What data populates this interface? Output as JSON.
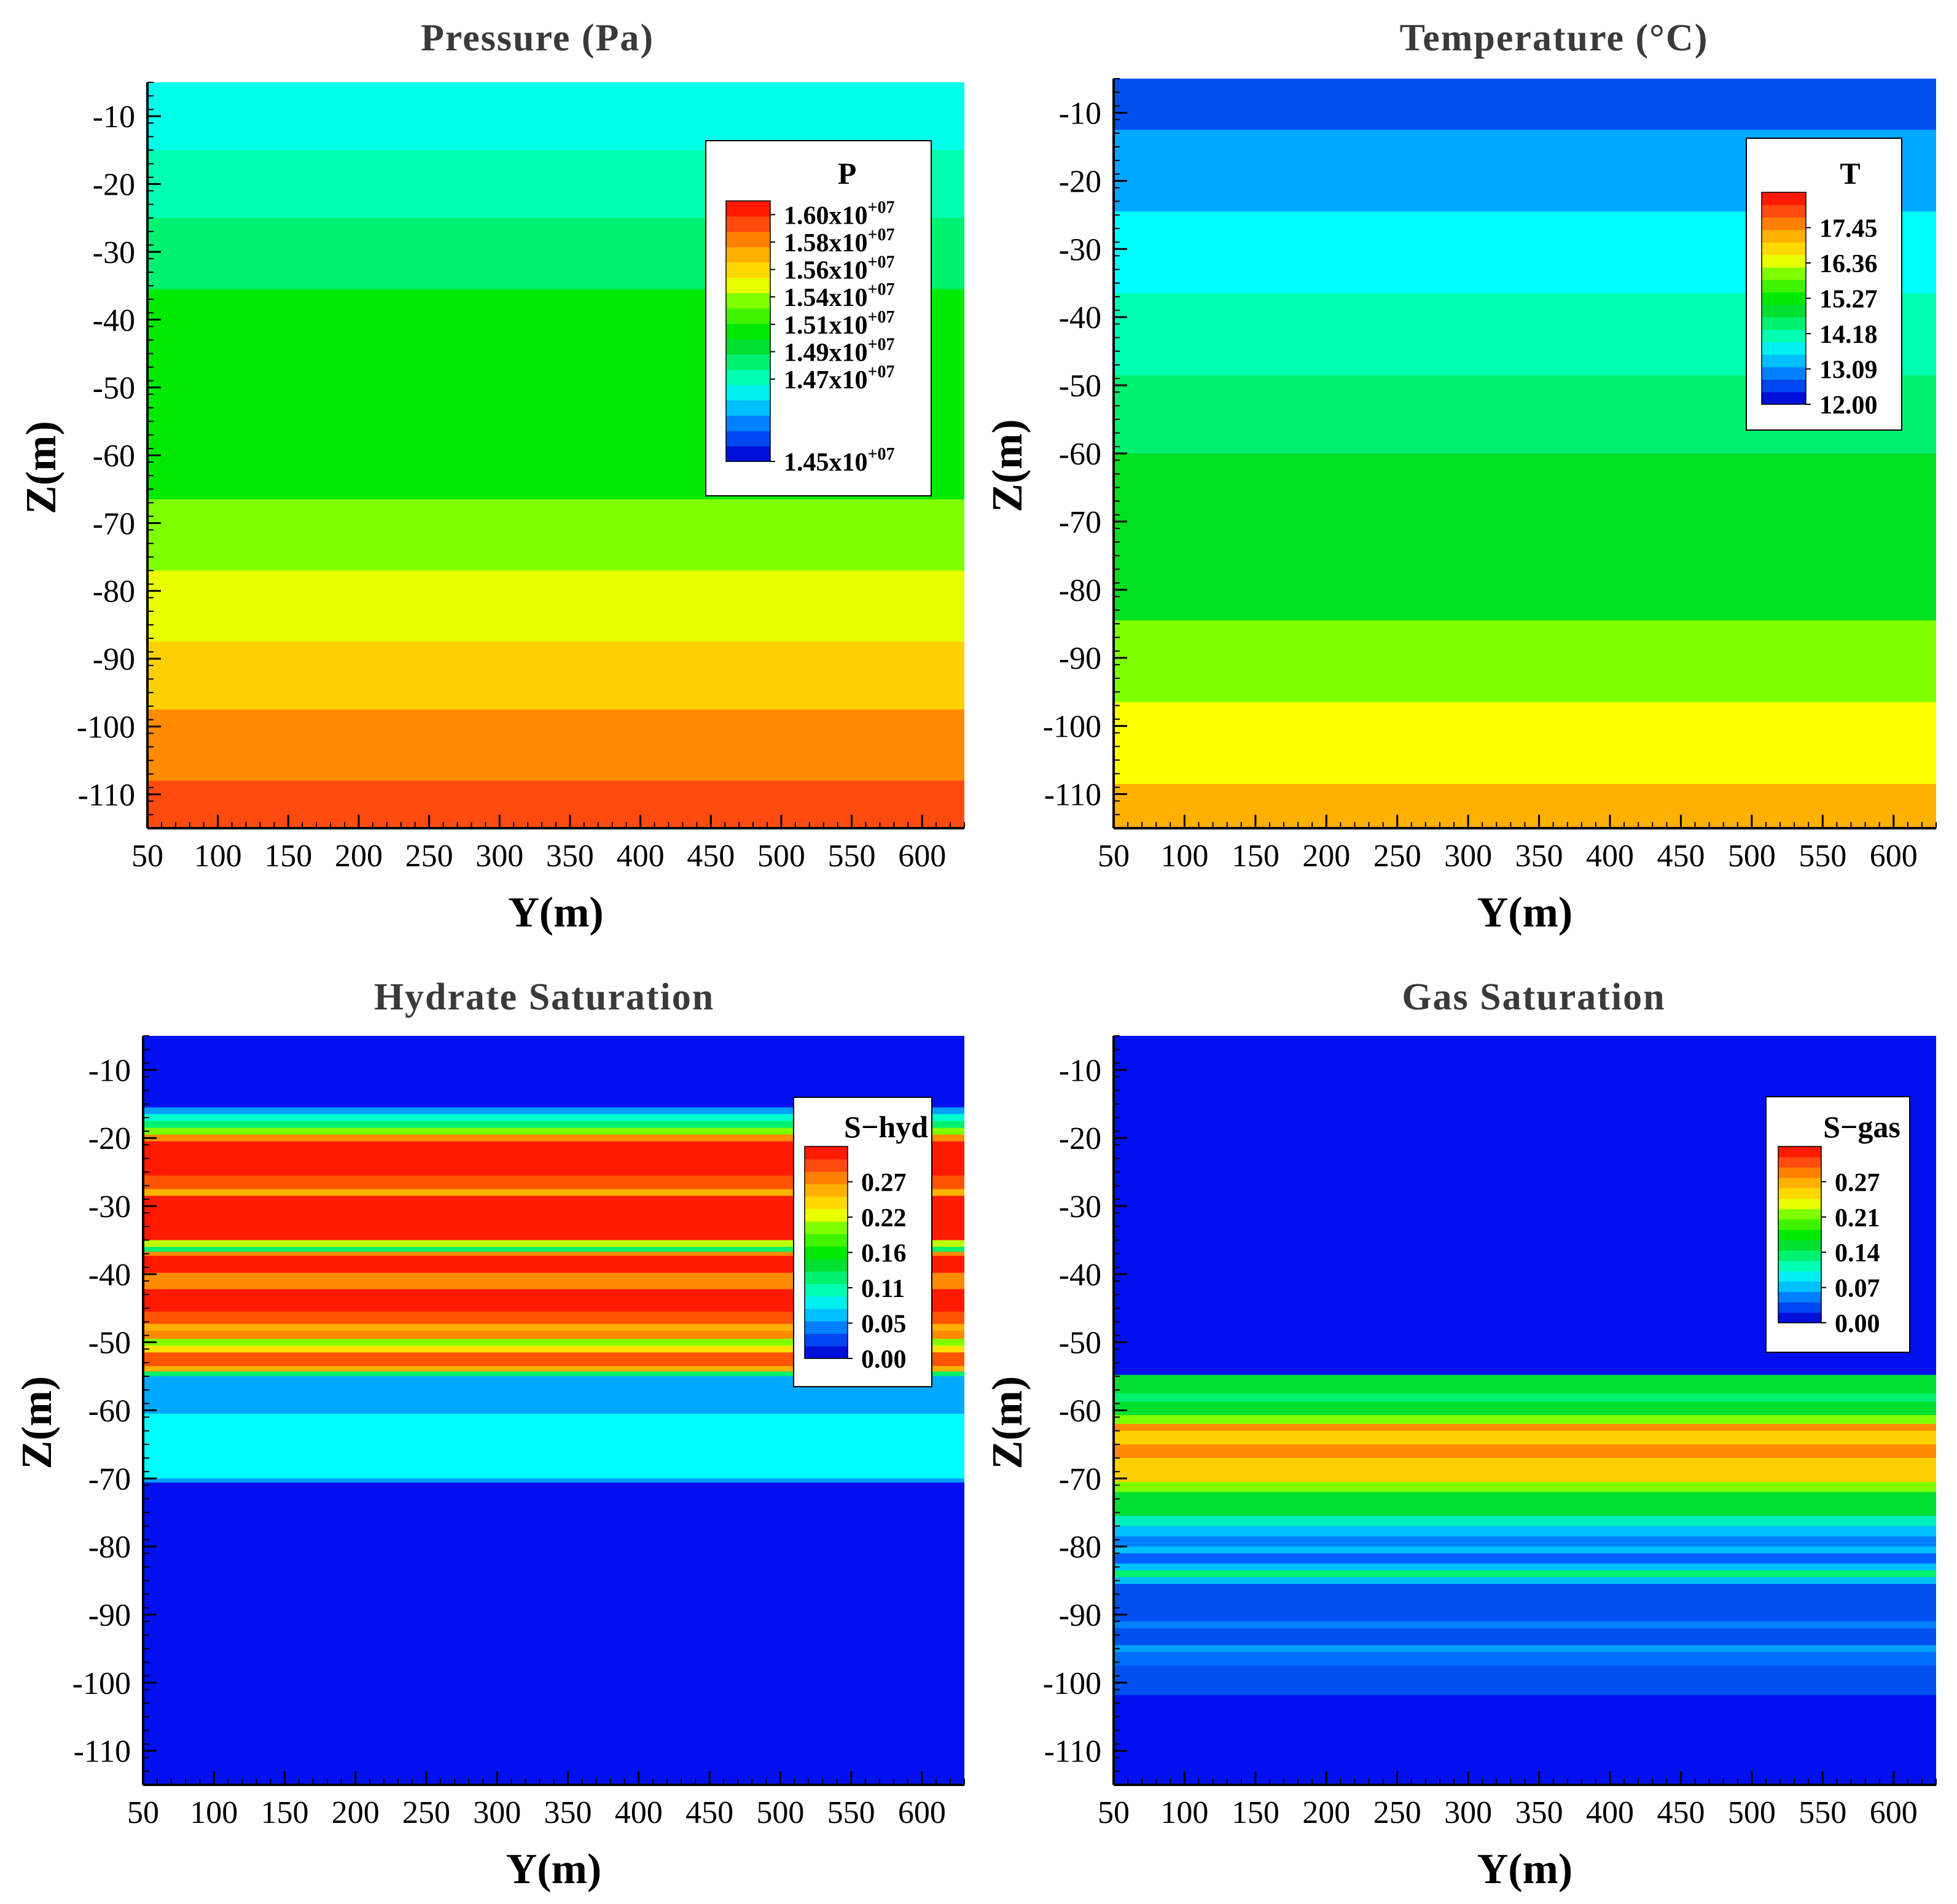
{
  "chart_data": [
    {
      "type": "heatmap",
      "title": "Pressure (Pa)",
      "xlabel": "Y(m)",
      "ylabel": "Z(m)",
      "xlim": [
        50,
        630
      ],
      "ylim": [
        -115,
        -5
      ],
      "xticks": [
        50,
        100,
        150,
        200,
        250,
        300,
        350,
        400,
        450,
        500,
        550,
        600
      ],
      "yticks": [
        -10,
        -20,
        -30,
        -40,
        -50,
        -60,
        -70,
        -80,
        -90,
        -100,
        -110
      ],
      "legend": {
        "title": "P",
        "position": "top-right",
        "colors": [
          "#0010d8",
          "#0046f0",
          "#0080ff",
          "#00c0ff",
          "#00f0f0",
          "#00ffb0",
          "#00f070",
          "#00e030",
          "#00ea00",
          "#40f400",
          "#80ff00",
          "#e8ff00",
          "#ffd800",
          "#ffb000",
          "#ff8000",
          "#ff4a10",
          "#ff1a00"
        ],
        "labels": [
          {
            "mantissa": "1.60x10",
            "exp": "+07",
            "pos": 0.9474
          },
          {
            "mantissa": "1.58x10",
            "exp": "+07",
            "pos": 0.8421
          },
          {
            "mantissa": "1.56x10",
            "exp": "+07",
            "pos": 0.7368
          },
          {
            "mantissa": "1.54x10",
            "exp": "+07",
            "pos": 0.6316
          },
          {
            "mantissa": "1.51x10",
            "exp": "+07",
            "pos": 0.5263
          },
          {
            "mantissa": "1.49x10",
            "exp": "+07",
            "pos": 0.4211
          },
          {
            "mantissa": "1.47x10",
            "exp": "+07",
            "pos": 0.3158
          },
          {
            "mantissa": "1.45x10",
            "exp": "+07",
            "pos": 0.0
          }
        ]
      },
      "bands": [
        {
          "z_top": -5,
          "z_bottom": -15,
          "color": "#00ffe8"
        },
        {
          "z_top": -15,
          "z_bottom": -25,
          "color": "#00ffb0"
        },
        {
          "z_top": -25,
          "z_bottom": -35.5,
          "color": "#00f070"
        },
        {
          "z_top": -35.5,
          "z_bottom": -66.5,
          "color": "#00ea00"
        },
        {
          "z_top": -66.5,
          "z_bottom": -77,
          "color": "#80ff00"
        },
        {
          "z_top": -77,
          "z_bottom": -87.5,
          "color": "#e8ff00"
        },
        {
          "z_top": -87.5,
          "z_bottom": -97.5,
          "color": "#ffd000"
        },
        {
          "z_top": -97.5,
          "z_bottom": -108,
          "color": "#ff8c00"
        },
        {
          "z_top": -108,
          "z_bottom": -115,
          "color": "#ff4a10"
        }
      ]
    },
    {
      "type": "heatmap",
      "title": "Temperature (°C)",
      "xlabel": "Y(m)",
      "ylabel": "Z(m)",
      "xlim": [
        50,
        630
      ],
      "ylim": [
        -115,
        -5
      ],
      "xticks": [
        50,
        100,
        150,
        200,
        250,
        300,
        350,
        400,
        450,
        500,
        550,
        600
      ],
      "yticks": [
        -10,
        -20,
        -30,
        -40,
        -50,
        -60,
        -70,
        -80,
        -90,
        -100,
        -110
      ],
      "legend": {
        "title": "T",
        "position": "top-right",
        "colors": [
          "#0010d8",
          "#0046f0",
          "#0080ff",
          "#00c0ff",
          "#00f0f0",
          "#00ffb0",
          "#00f070",
          "#00e030",
          "#00ea00",
          "#40f400",
          "#80ff00",
          "#e8ff00",
          "#ffd800",
          "#ffb000",
          "#ff8000",
          "#ff4a10",
          "#ff1a00"
        ],
        "labels": [
          {
            "text": "17.45",
            "pos": 0.8333
          },
          {
            "text": "16.36",
            "pos": 0.6667
          },
          {
            "text": "15.27",
            "pos": 0.5
          },
          {
            "text": "14.18",
            "pos": 0.3333
          },
          {
            "text": "13.09",
            "pos": 0.1667
          },
          {
            "text": "12.00",
            "pos": 0.0
          }
        ]
      },
      "bands": [
        {
          "z_top": -5,
          "z_bottom": -12.5,
          "color": "#0050f0"
        },
        {
          "z_top": -12.5,
          "z_bottom": -24.5,
          "color": "#00a8ff"
        },
        {
          "z_top": -24.5,
          "z_bottom": -36.5,
          "color": "#00ffff"
        },
        {
          "z_top": -36.5,
          "z_bottom": -48.5,
          "color": "#00ffb0"
        },
        {
          "z_top": -48.5,
          "z_bottom": -60,
          "color": "#00f070"
        },
        {
          "z_top": -60,
          "z_bottom": -84.5,
          "color": "#00e020"
        },
        {
          "z_top": -84.5,
          "z_bottom": -96.5,
          "color": "#80ff00"
        },
        {
          "z_top": -96.5,
          "z_bottom": -108.5,
          "color": "#ffff00"
        },
        {
          "z_top": -108.5,
          "z_bottom": -115,
          "color": "#ffb000"
        }
      ]
    },
    {
      "type": "heatmap",
      "title": "Hydrate Saturation",
      "xlabel": "Y(m)",
      "ylabel": "Z(m)",
      "xlim": [
        50,
        630
      ],
      "ylim": [
        -115,
        -5
      ],
      "xticks": [
        50,
        100,
        150,
        200,
        250,
        300,
        350,
        400,
        450,
        500,
        550,
        600
      ],
      "yticks": [
        -10,
        -20,
        -30,
        -40,
        -50,
        -60,
        -70,
        -80,
        -90,
        -100,
        -110
      ],
      "legend": {
        "title": "S−hyd",
        "position": "top-right",
        "colors": [
          "#0010d8",
          "#0046f0",
          "#0080ff",
          "#00c0ff",
          "#00f0f0",
          "#00ffb0",
          "#00f070",
          "#00e030",
          "#00ea00",
          "#40f400",
          "#80ff00",
          "#e8ff00",
          "#ffd800",
          "#ffb000",
          "#ff8000",
          "#ff4a10",
          "#ff1a00"
        ],
        "labels": [
          {
            "text": "0.27",
            "pos": 0.8333
          },
          {
            "text": "0.22",
            "pos": 0.6667
          },
          {
            "text": "0.16",
            "pos": 0.5
          },
          {
            "text": "0.11",
            "pos": 0.3333
          },
          {
            "text": "0.05",
            "pos": 0.1667
          },
          {
            "text": "0.00",
            "pos": 0.0
          }
        ]
      },
      "bands": [
        {
          "z_top": -5,
          "z_bottom": -15.5,
          "color": "#0010ee"
        },
        {
          "z_top": -15.5,
          "z_bottom": -16.5,
          "color": "#00a0ff"
        },
        {
          "z_top": -16.5,
          "z_bottom": -17.5,
          "color": "#00ffd0"
        },
        {
          "z_top": -17.5,
          "z_bottom": -18.5,
          "color": "#00f070"
        },
        {
          "z_top": -18.5,
          "z_bottom": -19.5,
          "color": "#80ff00"
        },
        {
          "z_top": -19.5,
          "z_bottom": -20.5,
          "color": "#ff8c00"
        },
        {
          "z_top": -20.5,
          "z_bottom": -25.5,
          "color": "#ff1a00"
        },
        {
          "z_top": -25.5,
          "z_bottom": -27.5,
          "color": "#ff5500"
        },
        {
          "z_top": -27.5,
          "z_bottom": -28.5,
          "color": "#ffb000"
        },
        {
          "z_top": -28.5,
          "z_bottom": -35,
          "color": "#ff1a00"
        },
        {
          "z_top": -35,
          "z_bottom": -36,
          "color": "#c0ff00"
        },
        {
          "z_top": -36,
          "z_bottom": -36.7,
          "color": "#00f070"
        },
        {
          "z_top": -36.7,
          "z_bottom": -37.3,
          "color": "#ff8c00"
        },
        {
          "z_top": -37.3,
          "z_bottom": -39.8,
          "color": "#ff1a00"
        },
        {
          "z_top": -39.8,
          "z_bottom": -42.2,
          "color": "#ff8c00"
        },
        {
          "z_top": -42.2,
          "z_bottom": -45.5,
          "color": "#ff1a00"
        },
        {
          "z_top": -45.5,
          "z_bottom": -47.3,
          "color": "#ff5500"
        },
        {
          "z_top": -47.3,
          "z_bottom": -48.3,
          "color": "#ffb000"
        },
        {
          "z_top": -48.3,
          "z_bottom": -49.5,
          "color": "#ff8c00"
        },
        {
          "z_top": -49.5,
          "z_bottom": -50.5,
          "color": "#80ff00"
        },
        {
          "z_top": -50.5,
          "z_bottom": -51.5,
          "color": "#ffe000"
        },
        {
          "z_top": -51.5,
          "z_bottom": -53.5,
          "color": "#ff5500"
        },
        {
          "z_top": -53.5,
          "z_bottom": -54.3,
          "color": "#ffb000"
        },
        {
          "z_top": -54.3,
          "z_bottom": -55,
          "color": "#00f070"
        },
        {
          "z_top": -55,
          "z_bottom": -60.5,
          "color": "#00a8ff"
        },
        {
          "z_top": -60.5,
          "z_bottom": -70,
          "color": "#00ffff"
        },
        {
          "z_top": -70,
          "z_bottom": -70.6,
          "color": "#00a0ff"
        },
        {
          "z_top": -70.6,
          "z_bottom": -115,
          "color": "#0010ee"
        }
      ]
    },
    {
      "type": "heatmap",
      "title": "Gas Saturation",
      "xlabel": "Y(m)",
      "ylabel": "Z(m)",
      "xlim": [
        50,
        630
      ],
      "ylim": [
        -115,
        -5
      ],
      "xticks": [
        50,
        100,
        150,
        200,
        250,
        300,
        350,
        400,
        450,
        500,
        550,
        600
      ],
      "yticks": [
        -10,
        -20,
        -30,
        -40,
        -50,
        -60,
        -70,
        -80,
        -90,
        -100,
        -110
      ],
      "legend": {
        "title": "S−gas",
        "position": "top-right",
        "colors": [
          "#0010d8",
          "#0046f0",
          "#0080ff",
          "#00c0ff",
          "#00f0f0",
          "#00ffb0",
          "#00f070",
          "#00e030",
          "#00ea00",
          "#40f400",
          "#80ff00",
          "#e8ff00",
          "#ffd800",
          "#ffb000",
          "#ff8000",
          "#ff4a10",
          "#ff1a00"
        ],
        "labels": [
          {
            "text": "0.27",
            "pos": 0.8
          },
          {
            "text": "0.21",
            "pos": 0.6
          },
          {
            "text": "0.14",
            "pos": 0.4
          },
          {
            "text": "0.07",
            "pos": 0.2
          },
          {
            "text": "0.00",
            "pos": 0.0
          }
        ]
      },
      "bands": [
        {
          "z_top": -5,
          "z_bottom": -54.8,
          "color": "#0010ee"
        },
        {
          "z_top": -54.8,
          "z_bottom": -57.5,
          "color": "#00e030"
        },
        {
          "z_top": -57.5,
          "z_bottom": -58.7,
          "color": "#00f070"
        },
        {
          "z_top": -58.7,
          "z_bottom": -60.7,
          "color": "#00e030"
        },
        {
          "z_top": -60.7,
          "z_bottom": -62,
          "color": "#80ff00"
        },
        {
          "z_top": -62,
          "z_bottom": -63,
          "color": "#ff8c00"
        },
        {
          "z_top": -63,
          "z_bottom": -65,
          "color": "#ffd000"
        },
        {
          "z_top": -65,
          "z_bottom": -67,
          "color": "#ff8c00"
        },
        {
          "z_top": -67,
          "z_bottom": -70.5,
          "color": "#ffd000"
        },
        {
          "z_top": -70.5,
          "z_bottom": -72,
          "color": "#80ff00"
        },
        {
          "z_top": -72,
          "z_bottom": -75.5,
          "color": "#00e030"
        },
        {
          "z_top": -75.5,
          "z_bottom": -77,
          "color": "#00f0c0"
        },
        {
          "z_top": -77,
          "z_bottom": -78.5,
          "color": "#00c0ff"
        },
        {
          "z_top": -78.5,
          "z_bottom": -80,
          "color": "#0080ff"
        },
        {
          "z_top": -80,
          "z_bottom": -81,
          "color": "#00c0ff"
        },
        {
          "z_top": -81,
          "z_bottom": -82.5,
          "color": "#0060ff"
        },
        {
          "z_top": -82.5,
          "z_bottom": -83.5,
          "color": "#00c0ff"
        },
        {
          "z_top": -83.5,
          "z_bottom": -84.5,
          "color": "#00f070"
        },
        {
          "z_top": -84.5,
          "z_bottom": -85.5,
          "color": "#00c0ff"
        },
        {
          "z_top": -85.5,
          "z_bottom": -91,
          "color": "#0050f0"
        },
        {
          "z_top": -91,
          "z_bottom": -92,
          "color": "#0080ff"
        },
        {
          "z_top": -92,
          "z_bottom": -94.5,
          "color": "#0050f0"
        },
        {
          "z_top": -94.5,
          "z_bottom": -95.5,
          "color": "#00a0ff"
        },
        {
          "z_top": -95.5,
          "z_bottom": -97.5,
          "color": "#0070ff"
        },
        {
          "z_top": -97.5,
          "z_bottom": -101.8,
          "color": "#0050f0"
        },
        {
          "z_top": -101.8,
          "z_bottom": -115,
          "color": "#0010ee"
        }
      ]
    }
  ]
}
